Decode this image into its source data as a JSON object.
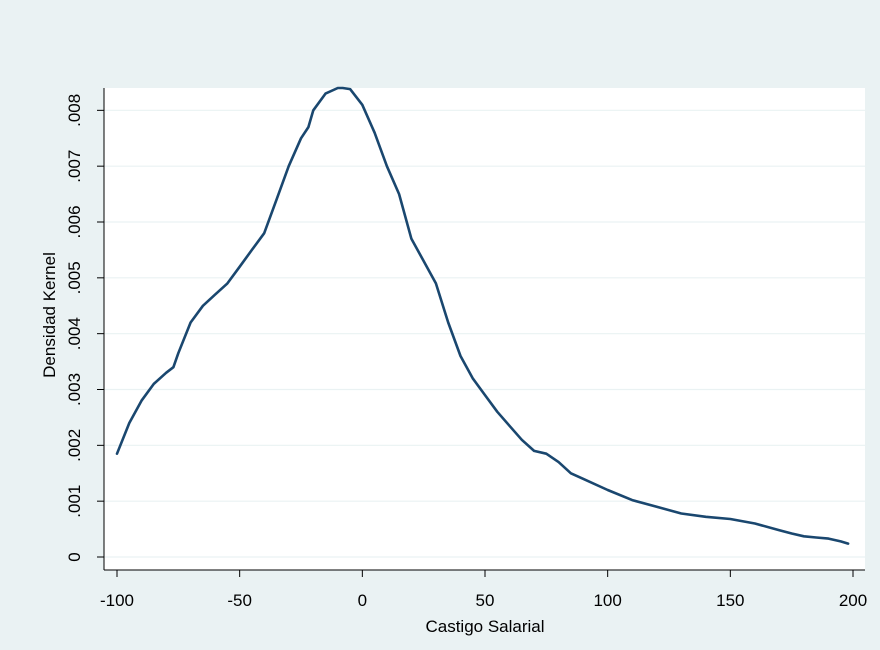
{
  "colors": {
    "outer_background": "#eaf2f3",
    "plot_background": "#ffffff",
    "gridline": "#eaf2f3",
    "line": "#1a476f",
    "axis": "#000000"
  },
  "chart_data": {
    "type": "line",
    "title": "",
    "xlabel": "Castigo Salarial",
    "ylabel": "Densidad Kernel",
    "xlim": [
      -100,
      200
    ],
    "ylim": [
      0,
      0.0084
    ],
    "x_ticks": [
      -100,
      -50,
      0,
      50,
      100,
      150,
      200
    ],
    "x_tick_labels": [
      "-100",
      "-50",
      "0",
      "50",
      "100",
      "150",
      "200"
    ],
    "y_ticks": [
      0,
      0.001,
      0.002,
      0.003,
      0.004,
      0.005,
      0.006,
      0.007,
      0.008
    ],
    "y_tick_labels": [
      "0",
      ".001",
      ".002",
      ".003",
      ".004",
      ".005",
      ".006",
      ".007",
      ".008"
    ],
    "grid": true,
    "legend": "none",
    "series": [
      {
        "x": [
          -100,
          -95,
          -90,
          -85,
          -80,
          -77,
          -75,
          -70,
          -65,
          -60,
          -55,
          -50,
          -45,
          -40,
          -35,
          -30,
          -25,
          -22,
          -20,
          -15,
          -10,
          -8,
          -5,
          0,
          5,
          10,
          15,
          20,
          25,
          30,
          35,
          40,
          45,
          50,
          55,
          60,
          65,
          70,
          75,
          80,
          85,
          90,
          100,
          110,
          120,
          130,
          140,
          150,
          160,
          170,
          175,
          180,
          185,
          190,
          195,
          198
        ],
        "y": [
          0.00185,
          0.0024,
          0.0028,
          0.0031,
          0.0033,
          0.0034,
          0.00365,
          0.0042,
          0.0045,
          0.0047,
          0.0049,
          0.0052,
          0.0055,
          0.0058,
          0.0064,
          0.007,
          0.0075,
          0.0077,
          0.008,
          0.0083,
          0.0084,
          0.0084,
          0.00838,
          0.0081,
          0.0076,
          0.007,
          0.0065,
          0.0057,
          0.0053,
          0.0049,
          0.0042,
          0.0036,
          0.0032,
          0.0029,
          0.0026,
          0.00235,
          0.0021,
          0.0019,
          0.00185,
          0.0017,
          0.0015,
          0.0014,
          0.0012,
          0.00102,
          0.0009,
          0.00078,
          0.00072,
          0.00068,
          0.0006,
          0.00048,
          0.00042,
          0.00037,
          0.00035,
          0.00033,
          0.00028,
          0.00024
        ]
      }
    ]
  }
}
